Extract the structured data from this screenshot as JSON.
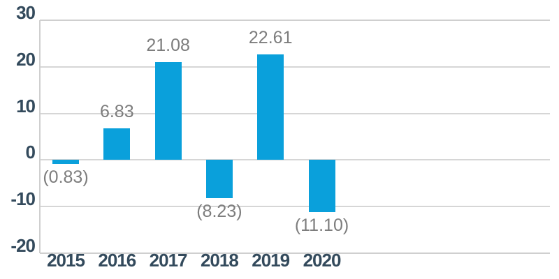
{
  "chart_data": {
    "type": "bar",
    "title": "",
    "xlabel": "",
    "ylabel": "",
    "categories": [
      "2015",
      "2016",
      "2017",
      "2018",
      "2019",
      "2020"
    ],
    "values": [
      -0.83,
      6.83,
      21.08,
      -8.23,
      22.61,
      -11.1
    ],
    "data_labels": [
      "(0.83)",
      "6.83",
      "21.08",
      "(8.23)",
      "22.61",
      "(11.10)"
    ],
    "yticks": [
      30,
      20,
      10,
      0,
      -10,
      -20
    ],
    "ytick_labels": [
      "30",
      "20",
      "10",
      "0",
      "-10",
      "-20"
    ],
    "ylim": [
      -20,
      30
    ],
    "grid": "horizontal",
    "legend": "none",
    "colors": {
      "bar": "#0aa0db",
      "axis_text": "#334a5c",
      "data_label_text": "#7d7d7d",
      "gridline": "#d6d6d6",
      "plot_border": "#cfcfcf",
      "background": "#ffffff"
    }
  }
}
